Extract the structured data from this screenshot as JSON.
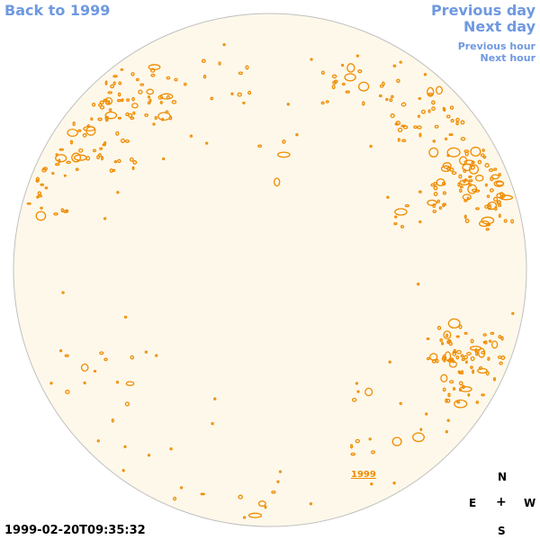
{
  "nav": {
    "back": "Back to 1999",
    "previous_day": "Previous day",
    "next_day": "Next day",
    "previous_hour": "Previous hour",
    "next_hour": "Next hour"
  },
  "timestamp": "1999-02-20T09:35:32",
  "year_link": "1999",
  "compass": {
    "north": "N",
    "east": "E",
    "center": "+",
    "west": "W",
    "south": "S"
  },
  "colors": {
    "disk_fill": "#fdf8ea",
    "disk_edge": "#c0c0c0",
    "contour": "#f08c00",
    "link": "#6f99e0"
  }
}
